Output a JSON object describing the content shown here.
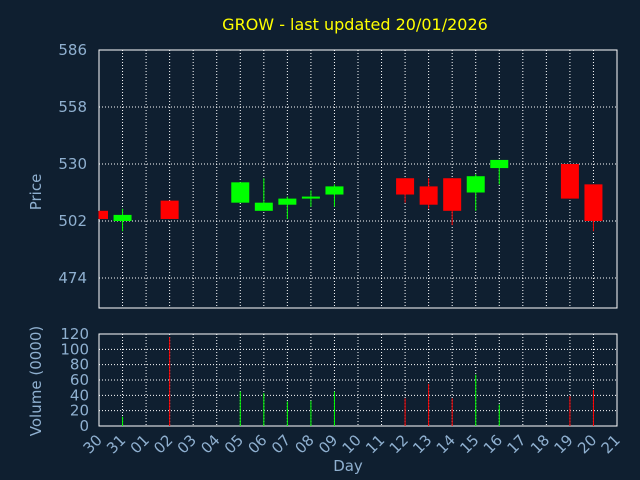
{
  "chart_data": {
    "type": "candlestick",
    "title": "GROW - last updated 20/01/2026",
    "xlabel": "Day",
    "ylabel_price": "Price",
    "ylabel_volume": "Volume (0000)",
    "price_ylim": [
      474,
      586
    ],
    "price_ticks": [
      474,
      502,
      530,
      558,
      586
    ],
    "volume_ylim": [
      0,
      120
    ],
    "volume_ticks": [
      0,
      20,
      40,
      60,
      80,
      100,
      120
    ],
    "x_ticks": [
      "30",
      "31",
      "01",
      "02",
      "03",
      "04",
      "05",
      "06",
      "07",
      "08",
      "09",
      "10",
      "11",
      "12",
      "13",
      "14",
      "15",
      "16",
      "17",
      "18",
      "19",
      "20",
      "21"
    ],
    "grid": true,
    "colors": {
      "background": "#0f1f30",
      "text": "#8fb0d0",
      "title": "#ffff00",
      "up": "#00ff00",
      "down": "#ff0000",
      "grid": "#ffffff"
    },
    "candles": [
      {
        "x": "30",
        "open": 507,
        "high": 507,
        "low": 503,
        "close": 503,
        "volume": 0
      },
      {
        "x": "31",
        "open": 502,
        "high": 508,
        "low": 497,
        "close": 505,
        "volume": 12
      },
      {
        "x": "02",
        "open": 512,
        "high": 512,
        "low": 503,
        "close": 503,
        "volume": 116
      },
      {
        "x": "05",
        "open": 511,
        "high": 521,
        "low": 511,
        "close": 521,
        "volume": 45
      },
      {
        "x": "06",
        "open": 507,
        "high": 523,
        "low": 507,
        "close": 511,
        "volume": 43
      },
      {
        "x": "07",
        "open": 510,
        "high": 514,
        "low": 503,
        "close": 513,
        "volume": 32
      },
      {
        "x": "08",
        "open": 513,
        "high": 517,
        "low": 509,
        "close": 514,
        "volume": 33
      },
      {
        "x": "09",
        "open": 515,
        "high": 520,
        "low": 509,
        "close": 519,
        "volume": 45
      },
      {
        "x": "12",
        "open": 523,
        "high": 523,
        "low": 511,
        "close": 515,
        "volume": 36
      },
      {
        "x": "13",
        "open": 519,
        "high": 523,
        "low": 508,
        "close": 510,
        "volume": 55
      },
      {
        "x": "14",
        "open": 523,
        "high": 523,
        "low": 500,
        "close": 507,
        "volume": 36
      },
      {
        "x": "15",
        "open": 516,
        "high": 525,
        "low": 507,
        "close": 524,
        "volume": 67
      },
      {
        "x": "16",
        "open": 528,
        "high": 532,
        "low": 520,
        "close": 532,
        "volume": 28
      },
      {
        "x": "19",
        "open": 530,
        "high": 530,
        "low": 513,
        "close": 513,
        "volume": 39
      },
      {
        "x": "20",
        "open": 520,
        "high": 520,
        "low": 497,
        "close": 502,
        "volume": 47
      }
    ]
  }
}
